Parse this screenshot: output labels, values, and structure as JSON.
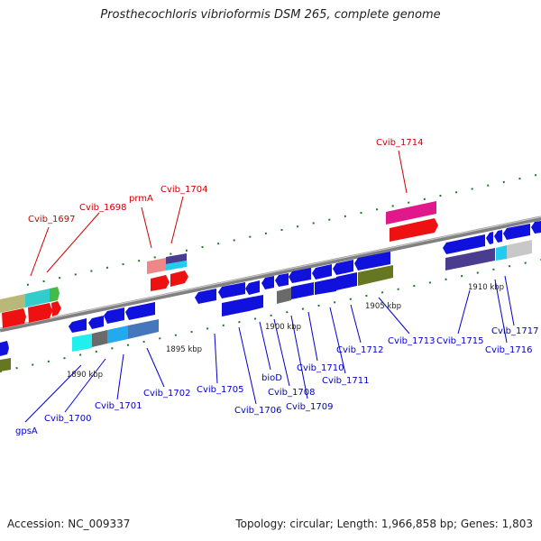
{
  "title": "Prosthecochloris vibrioformis DSM 265, complete genome",
  "footer": {
    "accession": "Accession: NC_009337",
    "summary": "Topology: circular; Length: 1,966,858 bp; Genes: 1,803"
  },
  "scale_labels": [
    "1890 kbp",
    "1895 kbp",
    "1900 kbp",
    "1905 kbp",
    "1910 kbp"
  ],
  "gene_labels_top": [
    "Cvib_1697",
    "Cvib_1698",
    "prmA",
    "Cvib_1704",
    "Cvib_1714"
  ],
  "gene_labels_bottom": [
    "gpsA",
    "Cvib_1700",
    "Cvib_1701",
    "Cvib_1702",
    "Cvib_1705",
    "Cvib_1706",
    "bioD",
    "Cvib_1708",
    "Cvib_1709",
    "Cvib_1710",
    "Cvib_1711",
    "Cvib_1712",
    "Cvib_1713",
    "Cvib_1715",
    "Cvib_1716",
    "Cvib_1717"
  ],
  "colors": {
    "top_strand_label": "#cc0000",
    "bottom_strand_label": "#0000cc",
    "backbone": "#808080",
    "tick": "#1a7a1a"
  }
}
